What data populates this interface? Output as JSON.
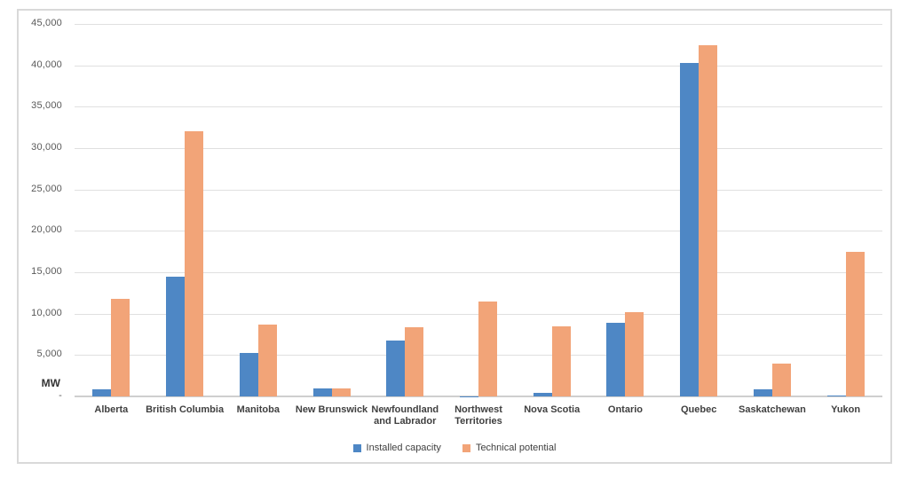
{
  "chart_data": {
    "type": "bar",
    "title": "",
    "xlabel": "",
    "ylabel": "MW",
    "ylim": [
      0,
      45000
    ],
    "grid": true,
    "legend_position": "bottom",
    "y_tick_step": 5000,
    "y_tick_labels": [
      "45,000",
      "40,000",
      "35,000",
      "30,000",
      "25,000",
      "20,000",
      "15,000",
      "10,000",
      "5,000",
      "-"
    ],
    "categories": [
      "Alberta",
      "British Columbia",
      "Manitoba",
      "New Brunswick",
      "Newfoundland and Labrador",
      "Northwest Territories",
      "Nova Scotia",
      "Ontario",
      "Quebec",
      "Saskatchewan",
      "Yukon"
    ],
    "series": [
      {
        "name": "Installed capacity",
        "color": "#4e87c5",
        "values": [
          900,
          14500,
          5300,
          950,
          6800,
          50,
          400,
          8900,
          40300,
          900,
          100
        ]
      },
      {
        "name": "Technical potential",
        "color": "#f2a478",
        "values": [
          11800,
          32000,
          8700,
          950,
          8400,
          11500,
          8500,
          10200,
          42400,
          4000,
          17500
        ]
      }
    ],
    "colors": {
      "grid": "#e0e0e0",
      "axis_line": "#cfcfcf",
      "tick_text": "#595959",
      "category_text": "#404040",
      "frame_border": "#d9d9d9"
    }
  }
}
